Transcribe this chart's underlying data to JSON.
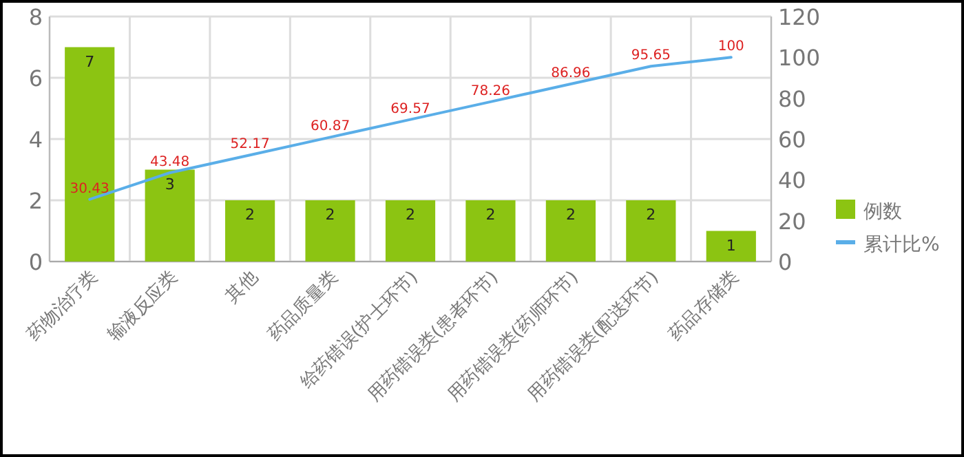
{
  "chart_data": {
    "type": "bar",
    "categories": [
      "药物治疗类",
      "输液反应类",
      "其他",
      "药品质量类",
      "给药错误(护士环节)",
      "用药错误类(患者环节)",
      "用药错误类(药师环节)",
      "用药错误类(配送环节)",
      "药品存储类"
    ],
    "series": [
      {
        "name": "例数",
        "color": "#8cc412",
        "values": [
          7,
          3,
          2,
          2,
          2,
          2,
          2,
          2,
          1
        ]
      },
      {
        "name": "累计比%",
        "type": "line",
        "axis": "y2",
        "color": "#5aaee8",
        "values": [
          30.43,
          43.48,
          52.17,
          60.87,
          69.57,
          78.26,
          86.96,
          95.65,
          100
        ]
      }
    ],
    "ylim": [
      0,
      8
    ],
    "yticks": [
      0,
      2,
      4,
      6,
      8
    ],
    "y2lim": [
      0,
      120
    ],
    "y2ticks": [
      0,
      20,
      40,
      60,
      80,
      100,
      120
    ],
    "grid": true,
    "legend": "right",
    "data_labels": true
  }
}
